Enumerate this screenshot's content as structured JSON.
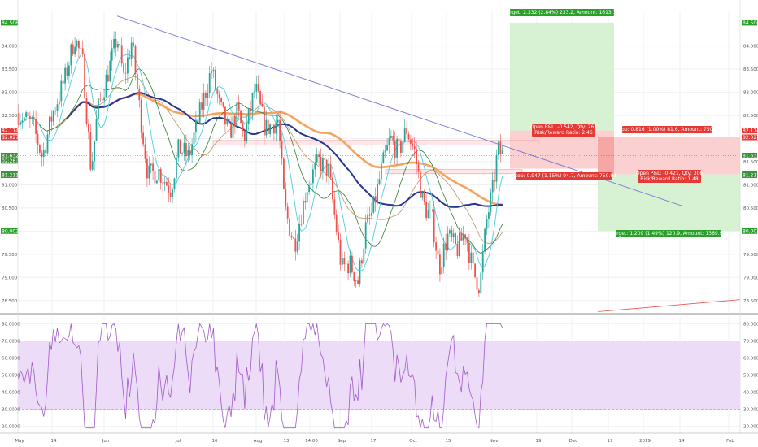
{
  "chart_data": {
    "type": "line",
    "main_panel": {
      "ylim": [
        78.25,
        84.75
      ],
      "y_ticks": [
        "84.000",
        "83.500",
        "83.000",
        "82.500",
        "82.000",
        "81.500",
        "81.000",
        "80.500",
        "80.000",
        "79.500",
        "79.000",
        "78.500"
      ],
      "right_markers": [
        {
          "label": "84.506",
          "value": 84.506,
          "color": "#2aa02a"
        },
        {
          "label": "82.174",
          "value": 82.174,
          "color": "#e53935"
        },
        {
          "label": "82.027",
          "value": 82.027,
          "color": "#e53935"
        },
        {
          "label": "81.632",
          "value": 81.632,
          "color": "#3c8f3c"
        },
        {
          "label": "81.227",
          "value": 81.227,
          "color": "#e53935"
        },
        {
          "label": "81.211",
          "value": 81.211,
          "color": "#3c8f3c"
        },
        {
          "label": "80.002",
          "value": 80.002,
          "color": "#2aa02a"
        }
      ],
      "left_markers": [
        {
          "label": "84.506",
          "value": 84.506,
          "color": "#2aa02a"
        },
        {
          "label": "82.174",
          "value": 82.174,
          "color": "#e53935"
        },
        {
          "label": "82.027",
          "value": 82.027,
          "color": "#e53935"
        },
        {
          "label": "81.632",
          "value": 81.632,
          "color": "#3c8f3c"
        },
        {
          "label": "02:26:19",
          "value": 81.52,
          "color": "#3c8f3c"
        },
        {
          "label": "81.227",
          "value": 81.227,
          "color": "#e53935"
        },
        {
          "label": "81.211",
          "value": 81.211,
          "color": "#3c8f3c"
        },
        {
          "label": "80.002",
          "value": 80.002,
          "color": "#2aa02a"
        }
      ],
      "annotations": [
        {
          "id": "target-long",
          "text": "Target: 2.332 (2.84%) 233.2, Amount: 1613.32",
          "color": "#2aa02a"
        },
        {
          "id": "open-pl-short",
          "lines": [
            "Open P&L: -0.542, Qty: 263",
            "Risk/Reward Ratio: 2.46"
          ],
          "color": "#e53935"
        },
        {
          "id": "stop-long",
          "text": "Stop: 0.816 (1.00%) 81.6, Amount: 750.3",
          "color": "#e53935"
        },
        {
          "id": "stop-short",
          "text": "Stop: 0.947 (1.15%) 94.7, Amount: 750.94",
          "color": "#e53935"
        },
        {
          "id": "open-pl-long",
          "lines": [
            "Open P&L: -0.421, Qty: 306",
            "Risk/Reward Ratio: 1.48"
          ],
          "color": "#e53935"
        },
        {
          "id": "target-short",
          "text": "Target: 1.209 (1.49%) 120.9, Amount: 1369.95",
          "color": "#2aa02a"
        }
      ]
    },
    "rsi_panel": {
      "ylim": [
        16,
        84
      ],
      "y_ticks": [
        "80.0000",
        "70.0000",
        "60.0000",
        "50.0000",
        "40.0000",
        "30.0000",
        "20.0000"
      ],
      "band": [
        30,
        70
      ]
    },
    "x_ticks": [
      "May",
      "14",
      "Jun",
      "Jul",
      "16",
      "Aug",
      "13",
      "14:00",
      "Sep",
      "17",
      "Oct",
      "15",
      "Nov",
      "19",
      "Dec",
      "17",
      "2019",
      "14",
      "Feb"
    ],
    "colors": {
      "up_candle": "#26a69a",
      "down_candle": "#ef5350",
      "ma_navy": "#283593",
      "ma_orange": "#f4a460",
      "ma_cyan": "#4dd0e1",
      "ma_green": "#2e7d32",
      "ma_tan": "#b8956a",
      "trendline": "#7e7ed6",
      "rsi_line": "#a05ac8",
      "rsi_band": "#ecdcf8",
      "profit_zone": "#d7f2d2",
      "loss_zone": "#fbd0d0"
    }
  }
}
